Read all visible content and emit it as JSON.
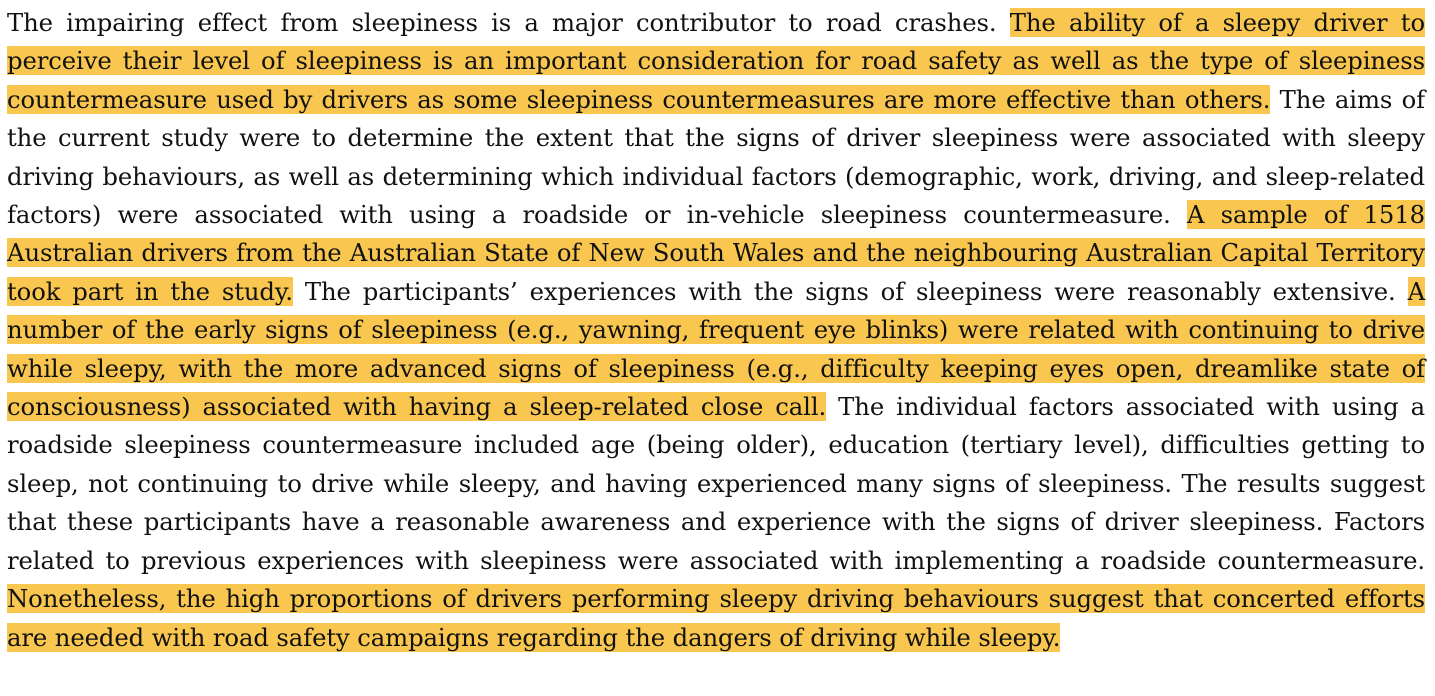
{
  "abstract": {
    "s1": "The impairing effect from sleepiness is a major contributor to road crashes.",
    "s2": "The ability of a sleepy driver to perceive their level of sleepiness is an important consideration for road safety as well as the type of sleepiness countermeasure used by drivers as some sleepiness countermeasures are more effective than others.",
    "s3": "The aims of the current study were to determine the extent that the signs of driver sleepiness were associated with sleepy driving behaviours, as well as determining which individual factors (demographic, work, driving, and sleep-related factors) were associated with using a roadside or in-vehicle sleepiness countermeasure.",
    "s4": "A sample of 1518 Australian drivers from the Australian State of New South Wales and the neighbouring Australian Capital Territory took part in the study.",
    "s5": "The participants’ experiences with the signs of sleepiness were reasonably extensive.",
    "s6": "A number of the early signs of sleepiness (e.g., yawning, frequent eye blinks) were related with continuing to drive while sleepy, with the more advanced signs of sleepiness (e.g., difficulty keeping eyes open, dreamlike state of consciousness) associated with having a sleep-related close call.",
    "s7": "The individual factors associated with using a roadside sleepiness counterme­asure included age (being older), education (tertiary level), difficulties getting to sleep, not continuing to drive while sleepy, and having experienced many signs of sleepiness. The results suggest that these par­ticipants have a reasonable awareness and experience with the signs of driver sleepiness. Factors related to previous experiences with sleepiness were associated with implementing a roadside countermeasure.",
    "s8": "Nonetheless, the high proportions of drivers performing sleepy driving behaviours suggest that concerted efforts are needed with road safety campaigns regarding the dangers of driving while sleepy."
  },
  "colors": {
    "highlight": "#f9c74f",
    "text": "#111111"
  }
}
